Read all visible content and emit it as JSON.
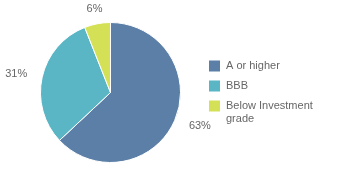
{
  "chart_data": {
    "type": "pie",
    "categories": [
      "A or higher",
      "BBB",
      "Below Investment\ngrade"
    ],
    "values": [
      63,
      31,
      6
    ],
    "value_labels": [
      "63%",
      "31%",
      "6%"
    ],
    "colors": [
      "#5b7fa6",
      "#5ab5c5",
      "#d4e157"
    ],
    "data_labels": true,
    "legend": "right"
  }
}
